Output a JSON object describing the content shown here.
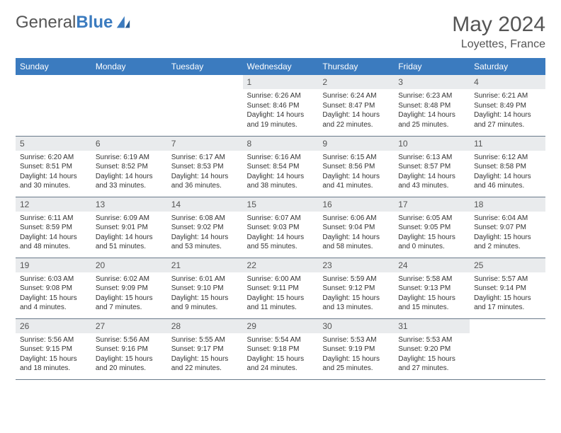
{
  "brand": {
    "part1": "General",
    "part2": "Blue"
  },
  "title": "May 2024",
  "location": "Loyettes, France",
  "colors": {
    "header_bg": "#3b7bbf",
    "header_fg": "#ffffff",
    "daynum_bg": "#e9ebed",
    "text": "#333333",
    "rule": "#6a7a8a"
  },
  "weekdays": [
    "Sunday",
    "Monday",
    "Tuesday",
    "Wednesday",
    "Thursday",
    "Friday",
    "Saturday"
  ],
  "weeks": [
    [
      {
        "n": "",
        "lines": []
      },
      {
        "n": "",
        "lines": []
      },
      {
        "n": "",
        "lines": []
      },
      {
        "n": "1",
        "lines": [
          "Sunrise: 6:26 AM",
          "Sunset: 8:46 PM",
          "Daylight: 14 hours",
          "and 19 minutes."
        ]
      },
      {
        "n": "2",
        "lines": [
          "Sunrise: 6:24 AM",
          "Sunset: 8:47 PM",
          "Daylight: 14 hours",
          "and 22 minutes."
        ]
      },
      {
        "n": "3",
        "lines": [
          "Sunrise: 6:23 AM",
          "Sunset: 8:48 PM",
          "Daylight: 14 hours",
          "and 25 minutes."
        ]
      },
      {
        "n": "4",
        "lines": [
          "Sunrise: 6:21 AM",
          "Sunset: 8:49 PM",
          "Daylight: 14 hours",
          "and 27 minutes."
        ]
      }
    ],
    [
      {
        "n": "5",
        "lines": [
          "Sunrise: 6:20 AM",
          "Sunset: 8:51 PM",
          "Daylight: 14 hours",
          "and 30 minutes."
        ]
      },
      {
        "n": "6",
        "lines": [
          "Sunrise: 6:19 AM",
          "Sunset: 8:52 PM",
          "Daylight: 14 hours",
          "and 33 minutes."
        ]
      },
      {
        "n": "7",
        "lines": [
          "Sunrise: 6:17 AM",
          "Sunset: 8:53 PM",
          "Daylight: 14 hours",
          "and 36 minutes."
        ]
      },
      {
        "n": "8",
        "lines": [
          "Sunrise: 6:16 AM",
          "Sunset: 8:54 PM",
          "Daylight: 14 hours",
          "and 38 minutes."
        ]
      },
      {
        "n": "9",
        "lines": [
          "Sunrise: 6:15 AM",
          "Sunset: 8:56 PM",
          "Daylight: 14 hours",
          "and 41 minutes."
        ]
      },
      {
        "n": "10",
        "lines": [
          "Sunrise: 6:13 AM",
          "Sunset: 8:57 PM",
          "Daylight: 14 hours",
          "and 43 minutes."
        ]
      },
      {
        "n": "11",
        "lines": [
          "Sunrise: 6:12 AM",
          "Sunset: 8:58 PM",
          "Daylight: 14 hours",
          "and 46 minutes."
        ]
      }
    ],
    [
      {
        "n": "12",
        "lines": [
          "Sunrise: 6:11 AM",
          "Sunset: 8:59 PM",
          "Daylight: 14 hours",
          "and 48 minutes."
        ]
      },
      {
        "n": "13",
        "lines": [
          "Sunrise: 6:09 AM",
          "Sunset: 9:01 PM",
          "Daylight: 14 hours",
          "and 51 minutes."
        ]
      },
      {
        "n": "14",
        "lines": [
          "Sunrise: 6:08 AM",
          "Sunset: 9:02 PM",
          "Daylight: 14 hours",
          "and 53 minutes."
        ]
      },
      {
        "n": "15",
        "lines": [
          "Sunrise: 6:07 AM",
          "Sunset: 9:03 PM",
          "Daylight: 14 hours",
          "and 55 minutes."
        ]
      },
      {
        "n": "16",
        "lines": [
          "Sunrise: 6:06 AM",
          "Sunset: 9:04 PM",
          "Daylight: 14 hours",
          "and 58 minutes."
        ]
      },
      {
        "n": "17",
        "lines": [
          "Sunrise: 6:05 AM",
          "Sunset: 9:05 PM",
          "Daylight: 15 hours",
          "and 0 minutes."
        ]
      },
      {
        "n": "18",
        "lines": [
          "Sunrise: 6:04 AM",
          "Sunset: 9:07 PM",
          "Daylight: 15 hours",
          "and 2 minutes."
        ]
      }
    ],
    [
      {
        "n": "19",
        "lines": [
          "Sunrise: 6:03 AM",
          "Sunset: 9:08 PM",
          "Daylight: 15 hours",
          "and 4 minutes."
        ]
      },
      {
        "n": "20",
        "lines": [
          "Sunrise: 6:02 AM",
          "Sunset: 9:09 PM",
          "Daylight: 15 hours",
          "and 7 minutes."
        ]
      },
      {
        "n": "21",
        "lines": [
          "Sunrise: 6:01 AM",
          "Sunset: 9:10 PM",
          "Daylight: 15 hours",
          "and 9 minutes."
        ]
      },
      {
        "n": "22",
        "lines": [
          "Sunrise: 6:00 AM",
          "Sunset: 9:11 PM",
          "Daylight: 15 hours",
          "and 11 minutes."
        ]
      },
      {
        "n": "23",
        "lines": [
          "Sunrise: 5:59 AM",
          "Sunset: 9:12 PM",
          "Daylight: 15 hours",
          "and 13 minutes."
        ]
      },
      {
        "n": "24",
        "lines": [
          "Sunrise: 5:58 AM",
          "Sunset: 9:13 PM",
          "Daylight: 15 hours",
          "and 15 minutes."
        ]
      },
      {
        "n": "25",
        "lines": [
          "Sunrise: 5:57 AM",
          "Sunset: 9:14 PM",
          "Daylight: 15 hours",
          "and 17 minutes."
        ]
      }
    ],
    [
      {
        "n": "26",
        "lines": [
          "Sunrise: 5:56 AM",
          "Sunset: 9:15 PM",
          "Daylight: 15 hours",
          "and 18 minutes."
        ]
      },
      {
        "n": "27",
        "lines": [
          "Sunrise: 5:56 AM",
          "Sunset: 9:16 PM",
          "Daylight: 15 hours",
          "and 20 minutes."
        ]
      },
      {
        "n": "28",
        "lines": [
          "Sunrise: 5:55 AM",
          "Sunset: 9:17 PM",
          "Daylight: 15 hours",
          "and 22 minutes."
        ]
      },
      {
        "n": "29",
        "lines": [
          "Sunrise: 5:54 AM",
          "Sunset: 9:18 PM",
          "Daylight: 15 hours",
          "and 24 minutes."
        ]
      },
      {
        "n": "30",
        "lines": [
          "Sunrise: 5:53 AM",
          "Sunset: 9:19 PM",
          "Daylight: 15 hours",
          "and 25 minutes."
        ]
      },
      {
        "n": "31",
        "lines": [
          "Sunrise: 5:53 AM",
          "Sunset: 9:20 PM",
          "Daylight: 15 hours",
          "and 27 minutes."
        ]
      },
      {
        "n": "",
        "lines": []
      }
    ]
  ]
}
